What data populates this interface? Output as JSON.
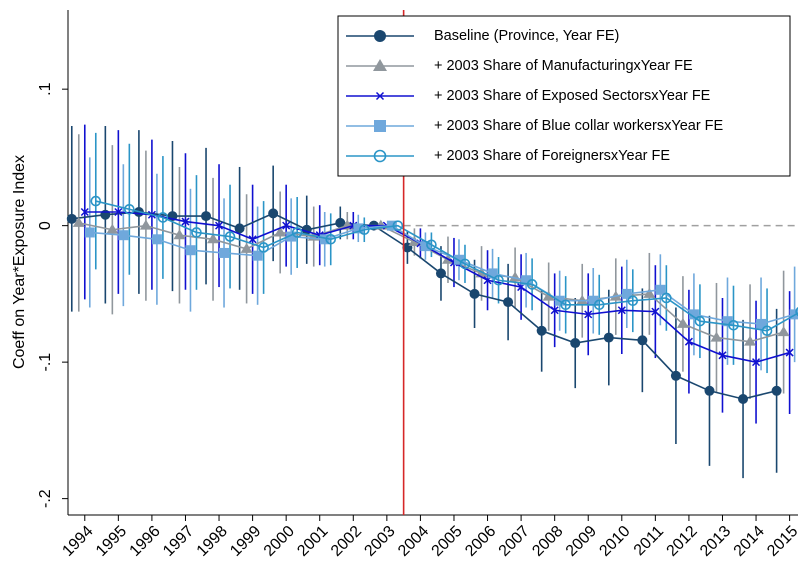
{
  "chart_data": {
    "type": "line",
    "y_label": "Coeff on Year*Exposure Index",
    "x": [
      1994,
      1995,
      1996,
      1997,
      1998,
      1999,
      2000,
      2001,
      2002,
      2003,
      2004,
      2005,
      2006,
      2007,
      2008,
      2009,
      2010,
      2011,
      2012,
      2013,
      2014,
      2015
    ],
    "xlim": [
      1993.5,
      2015.25
    ],
    "xticks": [
      1994,
      1995,
      1996,
      1997,
      1998,
      1999,
      2000,
      2001,
      2002,
      2003,
      2004,
      2005,
      2006,
      2007,
      2008,
      2009,
      2010,
      2011,
      2012,
      2013,
      2014,
      2015
    ],
    "ylim": [
      -0.212,
      0.158
    ],
    "yticks": [
      {
        "value": -0.2,
        "label": "-.2"
      },
      {
        "value": -0.1,
        "label": "-.1"
      },
      0,
      {
        "value": 0.1,
        "label": ".1"
      }
    ],
    "vline": 2003.5,
    "vline_color": "#d62728",
    "hline": 0,
    "hline_color": "#a0a0a0",
    "grid": false,
    "legend": "top-right",
    "series": [
      {
        "name": "Baseline (Province, Year FE)",
        "color": "#1a476f",
        "marker": "circle",
        "values": [
          0.005,
          0.008,
          0.01,
          0.007,
          0.007,
          -0.002,
          0.009,
          -0.003,
          0.002,
          0,
          -0.016,
          -0.035,
          -0.05,
          -0.056,
          -0.077,
          -0.086,
          -0.082,
          -0.084,
          -0.11,
          -0.121,
          -0.127,
          -0.121
        ],
        "errors": [
          0.068,
          0.065,
          0.06,
          0.055,
          0.05,
          0.045,
          0.035,
          0.025,
          0.012,
          0,
          0.012,
          0.02,
          0.025,
          0.028,
          0.03,
          0.033,
          0.035,
          0.038,
          0.05,
          0.055,
          0.058,
          0.06
        ]
      },
      {
        "name": "+ 2003 Share of ManufacturingxYear FE",
        "color": "#90979d",
        "marker": "triangle",
        "values": [
          0.002,
          -0.003,
          0,
          -0.007,
          -0.01,
          -0.017,
          -0.005,
          -0.008,
          0,
          0,
          -0.012,
          -0.025,
          -0.035,
          -0.038,
          -0.052,
          -0.055,
          -0.052,
          -0.05,
          -0.072,
          -0.082,
          -0.085,
          -0.078
        ],
        "errors": [
          0.065,
          0.062,
          0.055,
          0.05,
          0.045,
          0.04,
          0.03,
          0.022,
          0.01,
          0,
          0.01,
          0.017,
          0.02,
          0.022,
          0.025,
          0.027,
          0.028,
          0.03,
          0.035,
          0.04,
          0.042,
          0.045
        ]
      },
      {
        "name": "+ 2003 Share of Exposed SectorsxYear FE",
        "color": "#1010d0",
        "marker": "x",
        "values": [
          0.01,
          0.01,
          0.008,
          0.003,
          0,
          -0.01,
          0,
          -0.007,
          0,
          0,
          -0.013,
          -0.027,
          -0.04,
          -0.045,
          -0.062,
          -0.065,
          -0.062,
          -0.063,
          -0.085,
          -0.095,
          -0.1,
          -0.093
        ],
        "errors": [
          0.064,
          0.06,
          0.055,
          0.05,
          0.045,
          0.04,
          0.03,
          0.022,
          0.01,
          0,
          0.011,
          0.018,
          0.022,
          0.024,
          0.027,
          0.03,
          0.032,
          0.034,
          0.038,
          0.042,
          0.045,
          0.045
        ]
      },
      {
        "name": "+ 2003 Share of Blue collar workersxYear FE",
        "color": "#6fa8dc",
        "marker": "square",
        "values": [
          -0.005,
          -0.007,
          -0.01,
          -0.018,
          -0.02,
          -0.022,
          -0.008,
          -0.01,
          -0.002,
          0,
          -0.015,
          -0.025,
          -0.035,
          -0.04,
          -0.055,
          -0.055,
          -0.05,
          -0.047,
          -0.065,
          -0.07,
          -0.072,
          -0.065
        ],
        "errors": [
          0.055,
          0.052,
          0.048,
          0.045,
          0.04,
          0.036,
          0.028,
          0.02,
          0.01,
          0,
          0.01,
          0.015,
          0.018,
          0.02,
          0.022,
          0.024,
          0.025,
          0.026,
          0.03,
          0.032,
          0.034,
          0.035
        ]
      },
      {
        "name": "+ 2003 Share of ForeignersxYear FE",
        "color": "#2b95c7",
        "marker": "hollow-circle",
        "values": [
          0.018,
          0.012,
          0.006,
          -0.005,
          -0.008,
          -0.016,
          -0.005,
          -0.01,
          -0.003,
          0,
          -0.014,
          -0.028,
          -0.04,
          -0.043,
          -0.058,
          -0.058,
          -0.055,
          -0.053,
          -0.07,
          -0.073,
          -0.077,
          -0.063
        ],
        "errors": [
          0.05,
          0.048,
          0.045,
          0.042,
          0.038,
          0.034,
          0.026,
          0.019,
          0.009,
          0,
          0.009,
          0.014,
          0.017,
          0.019,
          0.021,
          0.022,
          0.023,
          0.024,
          0.027,
          0.029,
          0.031,
          0.032
        ]
      }
    ]
  }
}
